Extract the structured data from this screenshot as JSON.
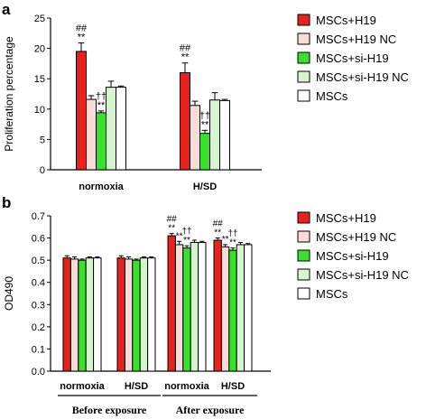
{
  "panels": {
    "a": "a",
    "b": "b"
  },
  "chart_data": [
    {
      "id": "a",
      "type": "bar",
      "ylabel": "Proliferation percentage",
      "ylim": [
        0,
        25
      ],
      "yticks": [
        0,
        5,
        10,
        15,
        20,
        25
      ],
      "categories": [
        "normoxia",
        "H/SD"
      ],
      "legend_position": "right",
      "series": [
        {
          "name": "MSCs+H19",
          "color": "#e8211c",
          "values": [
            19.5,
            16.0
          ],
          "errors": [
            1.4,
            1.6
          ]
        },
        {
          "name": "MSCs+H19 NC",
          "color": "#f7dcd8",
          "values": [
            11.6,
            10.6
          ],
          "errors": [
            0.6,
            0.7
          ]
        },
        {
          "name": "MSCs+si-H19",
          "color": "#39e22a",
          "values": [
            9.4,
            6.0
          ],
          "errors": [
            0.3,
            0.5
          ]
        },
        {
          "name": "MSCs+si-H19 NC",
          "color": "#d4f5cd",
          "values": [
            13.6,
            11.5
          ],
          "errors": [
            1.0,
            1.2
          ]
        },
        {
          "name": "MSCs",
          "color": "#ffffff",
          "values": [
            13.6,
            11.4
          ],
          "errors": [
            0.2,
            0.2
          ]
        }
      ],
      "annotations": [
        {
          "category": 0,
          "series": 0,
          "lines": [
            "##",
            "**"
          ]
        },
        {
          "category": 0,
          "series": 2,
          "lines": [
            "††",
            "**"
          ]
        },
        {
          "category": 1,
          "series": 0,
          "lines": [
            "##",
            "**"
          ]
        },
        {
          "category": 1,
          "series": 2,
          "lines": [
            "††",
            "**"
          ]
        }
      ]
    },
    {
      "id": "b",
      "type": "bar",
      "ylabel": "OD490",
      "ylim": [
        0,
        0.7
      ],
      "yticks": [
        "0.0",
        "0.1",
        "0.2",
        "0.3",
        "0.4",
        "0.5",
        "0.6",
        "0.7"
      ],
      "categories": [
        "normoxia",
        "H/SD",
        "normoxia",
        "H/SD"
      ],
      "groups": [
        {
          "label": "Before exposure",
          "categories": [
            0,
            1
          ]
        },
        {
          "label": "After exposure",
          "categories": [
            2,
            3
          ]
        }
      ],
      "legend_position": "right",
      "series": [
        {
          "name": "MSCs+H19",
          "color": "#e8211c",
          "values": [
            0.51,
            0.51,
            0.61,
            0.59
          ],
          "errors": [
            0.01,
            0.01,
            0.01,
            0.01
          ]
        },
        {
          "name": "MSCs+H19 NC",
          "color": "#f7dcd8",
          "values": [
            0.505,
            0.505,
            0.57,
            0.56
          ],
          "errors": [
            0.01,
            0.01,
            0.015,
            0.01
          ]
        },
        {
          "name": "MSCs+si-H19",
          "color": "#39e22a",
          "values": [
            0.5,
            0.5,
            0.555,
            0.545
          ],
          "errors": [
            0.005,
            0.005,
            0.01,
            0.01
          ]
        },
        {
          "name": "MSCs+si-H19 NC",
          "color": "#d4f5cd",
          "values": [
            0.51,
            0.51,
            0.58,
            0.57
          ],
          "errors": [
            0.005,
            0.005,
            0.01,
            0.01
          ]
        },
        {
          "name": "MSCs",
          "color": "#ffffff",
          "values": [
            0.51,
            0.51,
            0.58,
            0.57
          ],
          "errors": [
            0.005,
            0.005,
            0.005,
            0.005
          ]
        }
      ],
      "annotations": [
        {
          "category": 2,
          "series": 0,
          "lines": [
            "##",
            "**"
          ]
        },
        {
          "category": 2,
          "series": 1,
          "lines": [
            "**"
          ]
        },
        {
          "category": 2,
          "series": 2,
          "lines": [
            "††",
            "**"
          ]
        },
        {
          "category": 3,
          "series": 0,
          "lines": [
            "##",
            "**"
          ]
        },
        {
          "category": 3,
          "series": 1,
          "lines": [
            "**"
          ]
        },
        {
          "category": 3,
          "series": 2,
          "lines": [
            "††",
            "**"
          ]
        }
      ]
    }
  ]
}
